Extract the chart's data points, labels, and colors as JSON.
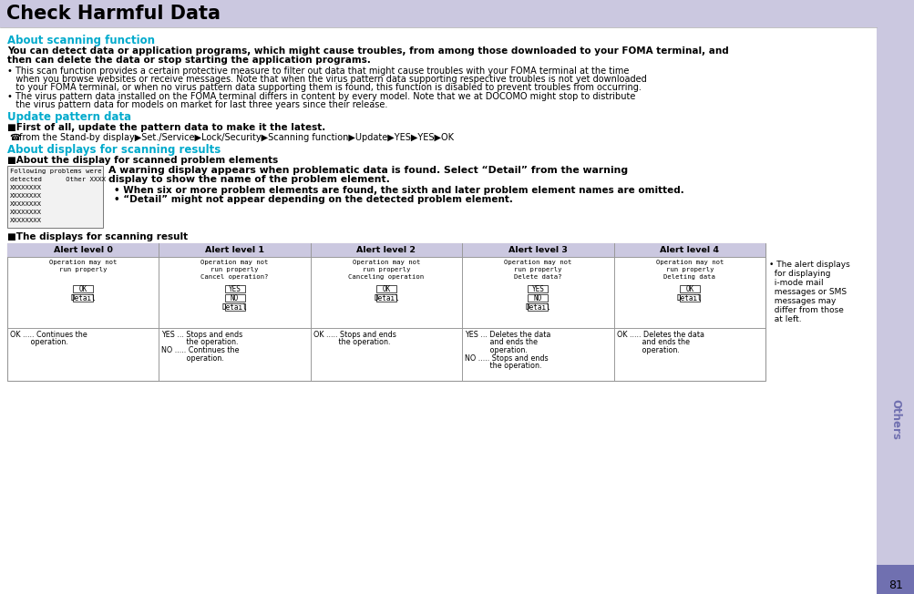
{
  "title": "Check Harmful Data",
  "title_bg": "#cbc8e0",
  "right_sidebar_color": "#cbc8e0",
  "right_sidebar_dark": "#7070b0",
  "section1_heading": "About scanning function",
  "heading_color": "#00aacc",
  "bold_intro_lines": [
    "You can detect data or application programs, which might cause troubles, from among those downloaded to your FOMA terminal, and",
    "then can delete the data or stop starting the application programs."
  ],
  "bullet1_lines": [
    "• This scan function provides a certain protective measure to filter out data that might cause troubles with your FOMA terminal at the time",
    "   when you browse websites or receive messages. Note that when the virus pattern data supporting respective troubles is not yet downloaded",
    "   to your FOMA terminal, or when no virus pattern data supporting them is found, this function is disabled to prevent troubles from occurring."
  ],
  "bullet2_lines": [
    "• The virus pattern data installed on the FOMA terminal differs in content by every model. Note that we at DOCOMO might stop to distribute",
    "   the virus pattern data for models on market for last three years since their release."
  ],
  "section2_heading": "Update pattern data",
  "section2_sub": "■First of all, update the pattern data to make it the latest.",
  "section2_nav": "☎ from the Stand-by display▶Set./Service▶Lock/Security▶Scanning function▶Update▶YES▶YES▶OK",
  "section3_heading": "About displays for scanning results",
  "section3_sub": "■About the display for scanned problem elements",
  "screen_lines": [
    "Following problems were",
    "detected      Other XXXX",
    "XXXXXXXX",
    "XXXXXXXX",
    "XXXXXXXX",
    "XXXXXXXX",
    "XXXXXXXX"
  ],
  "warn_lines": [
    "A warning display appears when problematic data is found. Select “Detail” from the warning",
    "display to show the name of the problem element."
  ],
  "warn_bullet1": "• When six or more problem elements are found, the sixth and later problem element names are omitted.",
  "warn_bullet2": "• “Detail” might not appear depending on the detected problem element.",
  "table_heading": "■The displays for scanning result",
  "alert_headers": [
    "Alert level 0",
    "Alert level 1",
    "Alert level 2",
    "Alert level 3",
    "Alert level 4"
  ],
  "alert_header_bg": "#cbc8e0",
  "alert_screens": [
    [
      "Operation may not",
      "run properly",
      "",
      "",
      ""
    ],
    [
      "Operation may not",
      "run properly",
      "Cancel operation?",
      "",
      ""
    ],
    [
      "Operation may not",
      "run properly",
      "Canceling operation",
      "",
      ""
    ],
    [
      "Operation may not",
      "run properly",
      "Delete data?",
      "",
      ""
    ],
    [
      "Operation may not",
      "run properly",
      "Deleting data",
      "",
      ""
    ]
  ],
  "alert_buttons": [
    [
      [
        "OK"
      ],
      [
        "Detail"
      ]
    ],
    [
      [
        "YES"
      ],
      [
        "NO"
      ],
      [
        "Detail"
      ]
    ],
    [
      [
        "OK"
      ],
      [
        "Detail"
      ]
    ],
    [
      [
        "YES"
      ],
      [
        "NO"
      ],
      [
        "Detail"
      ]
    ],
    [
      [
        "OK"
      ],
      [
        "Detail"
      ]
    ]
  ],
  "alert_descs": [
    [
      "OK ..... Continues the",
      "         operation."
    ],
    [
      "YES ... Stops and ends",
      "           the operation.",
      "NO ..... Continues the",
      "           operation."
    ],
    [
      "OK ..... Stops and ends",
      "           the operation."
    ],
    [
      "YES ... Deletes the data",
      "           and ends the",
      "           operation.",
      "NO ..... Stops and ends",
      "           the operation."
    ],
    [
      "OK ..... Deletes the data",
      "           and ends the",
      "           operation."
    ]
  ],
  "side_note_lines": [
    "• The alert displays",
    "  for displaying",
    "  i-mode mail",
    "  messages or SMS",
    "  messages may",
    "  differ from those",
    "  at left."
  ],
  "sidebar_text": "Others",
  "page_num": "81",
  "bg_color": "#ffffff",
  "text_color": "#000000",
  "table_border": "#999999",
  "mono_font": "monospace"
}
